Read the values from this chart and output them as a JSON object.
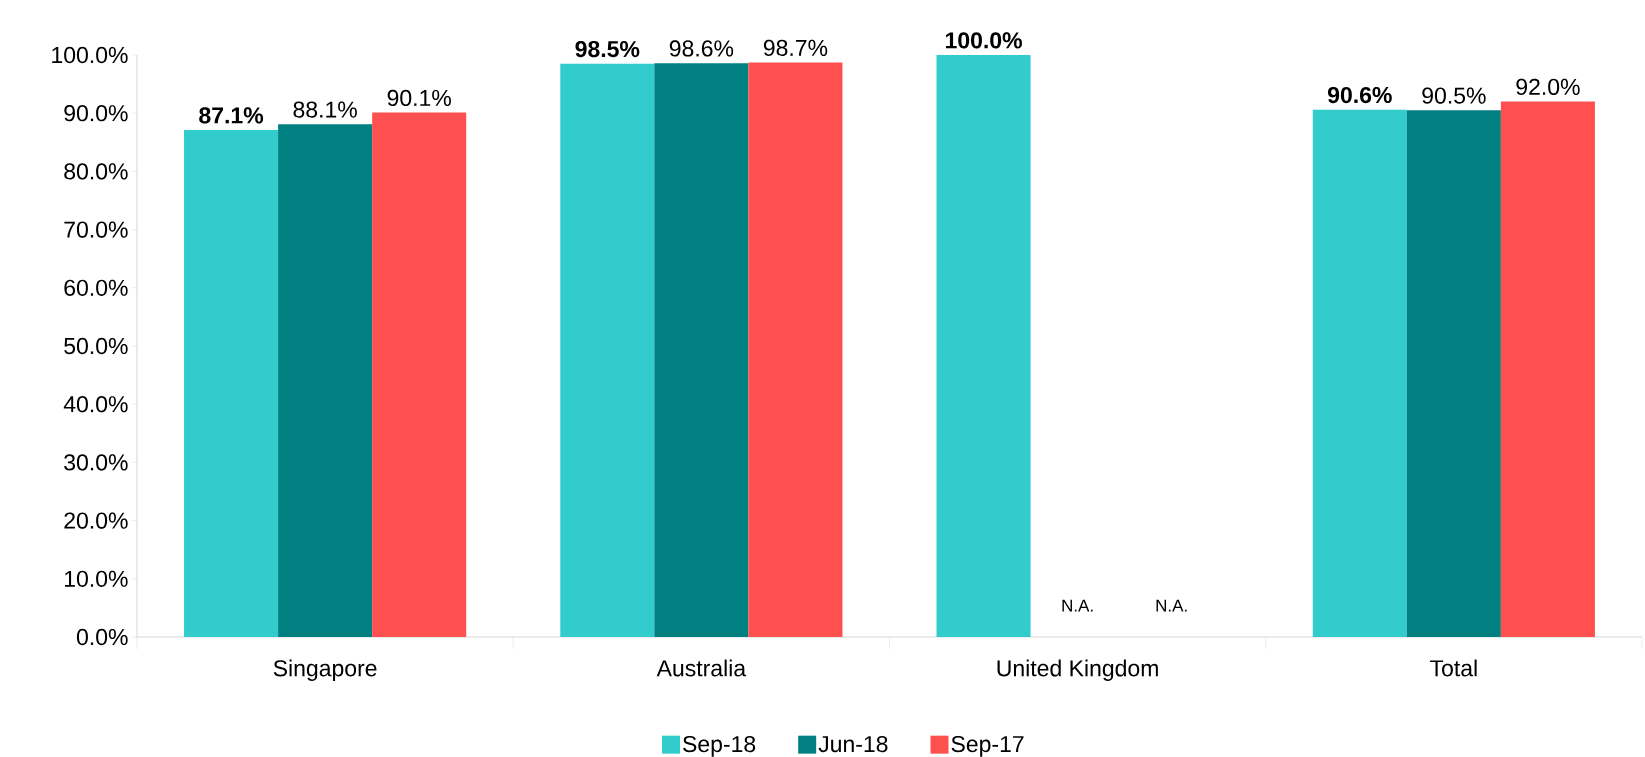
{
  "chart_data": {
    "type": "bar",
    "categories": [
      "Singapore",
      "Australia",
      "United Kingdom",
      "Total"
    ],
    "series": [
      {
        "name": "Sep-18",
        "color": "#33cccc",
        "values": [
          87.1,
          98.5,
          100.0,
          90.6
        ],
        "value_labels": [
          "**87.1%**",
          "**98.5%**",
          "**100.0%**",
          "**90.6%**"
        ]
      },
      {
        "name": "Jun-18",
        "color": "#008080",
        "values": [
          88.1,
          98.6,
          null,
          90.5
        ],
        "value_labels": [
          "88.1%",
          "98.6%",
          "N.A.",
          "90.5%"
        ]
      },
      {
        "name": "Sep-17",
        "color": "#ff5050",
        "values": [
          90.1,
          98.7,
          null,
          92.0
        ],
        "value_labels": [
          "90.1%",
          "98.7%",
          "N.A.",
          "92.0%"
        ]
      }
    ],
    "ylim": [
      0,
      100
    ],
    "yticks": [
      {
        "value": 0,
        "label": "0.0%"
      },
      {
        "value": 10,
        "label": "10.0%"
      },
      {
        "value": 20,
        "label": "20.0%"
      },
      {
        "value": 30,
        "label": "30.0%"
      },
      {
        "value": 40,
        "label": "40.0%"
      },
      {
        "value": 50,
        "label": "50.0%"
      },
      {
        "value": 60,
        "label": "60.0%"
      },
      {
        "value": 70,
        "label": "70.0%"
      },
      {
        "value": 80,
        "label": "80.0%"
      },
      {
        "value": 90,
        "label": "90.0%"
      },
      {
        "value": 100,
        "label": "100.0%"
      }
    ],
    "legend": "bottom"
  }
}
